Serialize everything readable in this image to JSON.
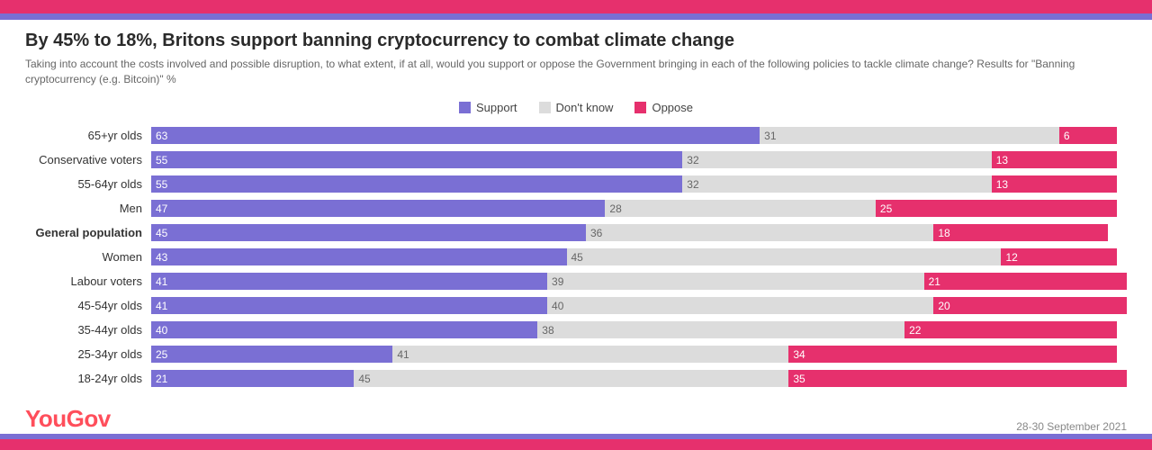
{
  "colors": {
    "support": "#7a6fd4",
    "dontknow": "#dcdcdc",
    "oppose": "#e6306d",
    "dk_text": "#666666"
  },
  "title": "By 45% to 18%, Britons support banning cryptocurrency to combat climate change",
  "subtitle": "Taking into account the costs involved and possible disruption, to what extent, if at all, would you support or oppose the Government bringing in each of the following policies to tackle climate change? Results for \"Banning cryptocurrency (e.g. Bitcoin)\" %",
  "legend": {
    "support": "Support",
    "dontknow": "Don't know",
    "oppose": "Oppose"
  },
  "rows": [
    {
      "label": "65+yr olds",
      "bold": false,
      "support": 63,
      "dontknow": 31,
      "oppose": 6
    },
    {
      "label": "Conservative voters",
      "bold": false,
      "support": 55,
      "dontknow": 32,
      "oppose": 13
    },
    {
      "label": "55-64yr olds",
      "bold": false,
      "support": 55,
      "dontknow": 32,
      "oppose": 13
    },
    {
      "label": "Men",
      "bold": false,
      "support": 47,
      "dontknow": 28,
      "oppose": 25
    },
    {
      "label": "General population",
      "bold": true,
      "support": 45,
      "dontknow": 36,
      "oppose": 18
    },
    {
      "label": "Women",
      "bold": false,
      "support": 43,
      "dontknow": 45,
      "oppose": 12
    },
    {
      "label": "Labour voters",
      "bold": false,
      "support": 41,
      "dontknow": 39,
      "oppose": 21
    },
    {
      "label": "45-54yr olds",
      "bold": false,
      "support": 41,
      "dontknow": 40,
      "oppose": 20
    },
    {
      "label": "35-44yr olds",
      "bold": false,
      "support": 40,
      "dontknow": 38,
      "oppose": 22
    },
    {
      "label": "25-34yr olds",
      "bold": false,
      "support": 25,
      "dontknow": 41,
      "oppose": 34
    },
    {
      "label": "18-24yr olds",
      "bold": false,
      "support": 21,
      "dontknow": 45,
      "oppose": 35
    }
  ],
  "max_total": 101,
  "logo": "YouGov",
  "date": "28-30 September 2021"
}
